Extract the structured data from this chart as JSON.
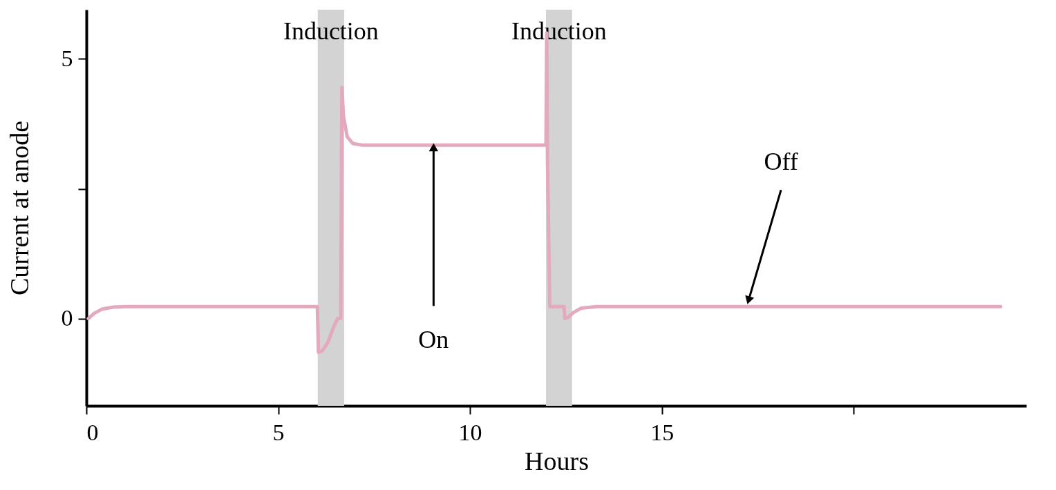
{
  "chart_data": {
    "type": "line",
    "xlabel": "Hours",
    "ylabel": "Current at anode",
    "xlim": [
      0,
      24.5
    ],
    "ylim": [
      -1.68,
      5.95
    ],
    "xticks": [
      0,
      5,
      10,
      15,
      {
        "value": 20,
        "label": null
      }
    ],
    "yticks": [
      0,
      {
        "value": 2.5,
        "label": null
      },
      5
    ],
    "marker": "none",
    "line_style": "solid",
    "x": [
      0.05,
      0.2,
      0.4,
      0.7,
      1.0,
      1.5,
      6.02,
      6.05,
      6.15,
      6.3,
      6.45,
      6.55,
      6.63,
      6.66,
      6.7,
      6.8,
      6.95,
      7.2,
      11.98,
      12.0,
      12.02,
      12.08,
      12.45,
      12.47,
      12.55,
      12.7,
      12.9,
      13.3,
      23.83
    ],
    "series": [
      {
        "color": "#e3a9bd",
        "values": [
          0,
          0.1,
          0.18,
          0.22,
          0.23,
          0.23,
          0.23,
          -0.65,
          -0.62,
          -0.45,
          -0.15,
          0,
          0,
          4.45,
          3.9,
          3.5,
          3.37,
          3.34,
          3.34,
          5.5,
          3.0,
          0.23,
          0.23,
          0,
          0.02,
          0.12,
          0.2,
          0.23,
          0.23
        ]
      }
    ],
    "bands": [
      {
        "axis": "x",
        "from": 6.03,
        "to": 6.72,
        "label": "Induction",
        "color": "#d3d3d3"
      },
      {
        "axis": "x",
        "from": 11.98,
        "to": 12.66,
        "label": "Induction",
        "color": "#d3d3d3"
      }
    ],
    "annotations": [
      {
        "text": "On",
        "x": 9.05,
        "y": 3.3
      },
      {
        "text": "Off",
        "x": 17.26,
        "y": 0.35
      }
    ]
  }
}
